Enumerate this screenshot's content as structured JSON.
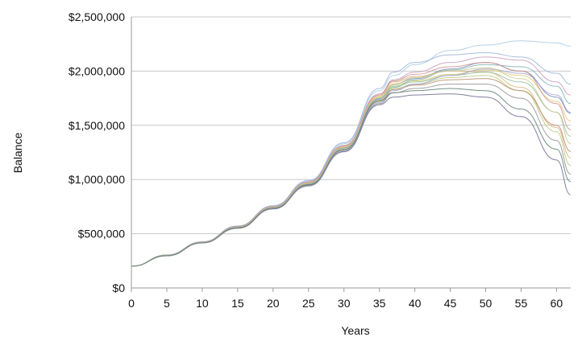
{
  "chart_data": {
    "type": "line",
    "title": "",
    "xlabel": "Years",
    "ylabel": "Balance",
    "xlim": [
      0,
      62
    ],
    "ylim": [
      0,
      2500000
    ],
    "x_ticks": [
      0,
      5,
      10,
      15,
      20,
      25,
      30,
      35,
      40,
      45,
      50,
      55,
      60
    ],
    "y_ticks": [
      0,
      500000,
      1000000,
      1500000,
      2000000,
      2500000
    ],
    "x_tick_labels": [
      "0",
      "5",
      "10",
      "15",
      "20",
      "25",
      "30",
      "35",
      "40",
      "45",
      "50",
      "55",
      "60"
    ],
    "y_tick_labels": [
      "$0",
      "$500,000",
      "$1,000,000",
      "$1,500,000",
      "$2,000,000",
      "$2,500,000"
    ],
    "grid": "horizontal",
    "legend": "none",
    "x": [
      0,
      5,
      10,
      15,
      20,
      25,
      30,
      35,
      37,
      40,
      45,
      50,
      55,
      60,
      62
    ],
    "series": [
      {
        "color": "#7f8fb0",
        "values": [
          200000,
          300000,
          420000,
          560000,
          740000,
          960000,
          1290000,
          1740000,
          1880000,
          1930000,
          2020000,
          2080000,
          2000000,
          1760000,
          1610000
        ]
      },
      {
        "color": "#a8c8e0",
        "values": [
          200000,
          305000,
          425000,
          570000,
          755000,
          985000,
          1330000,
          1820000,
          1960000,
          2060000,
          2190000,
          2240000,
          2280000,
          2260000,
          2230000
        ]
      },
      {
        "color": "#b9c97a",
        "values": [
          200000,
          298000,
          418000,
          555000,
          735000,
          950000,
          1270000,
          1720000,
          1840000,
          1880000,
          1940000,
          1960000,
          1820000,
          1440000,
          1130000
        ]
      },
      {
        "color": "#d9b27a",
        "values": [
          200000,
          302000,
          422000,
          565000,
          748000,
          972000,
          1305000,
          1770000,
          1900000,
          1950000,
          2000000,
          1990000,
          1850000,
          1480000,
          1200000
        ]
      },
      {
        "color": "#8fc09a",
        "values": [
          200000,
          300000,
          420000,
          562000,
          742000,
          965000,
          1295000,
          1750000,
          1860000,
          1900000,
          1960000,
          1990000,
          1900000,
          1620000,
          1400000
        ]
      },
      {
        "color": "#c59ab8",
        "values": [
          200000,
          303000,
          424000,
          567000,
          750000,
          978000,
          1315000,
          1790000,
          1920000,
          1990000,
          2080000,
          2130000,
          2100000,
          1900000,
          1780000
        ]
      },
      {
        "color": "#8f8f8f",
        "values": [
          200000,
          296000,
          415000,
          550000,
          728000,
          940000,
          1255000,
          1700000,
          1800000,
          1840000,
          1880000,
          1880000,
          1750000,
          1360000,
          1050000
        ]
      },
      {
        "color": "#6a6a8f",
        "values": [
          200000,
          297000,
          416000,
          552000,
          730000,
          945000,
          1260000,
          1690000,
          1760000,
          1780000,
          1790000,
          1760000,
          1580000,
          1180000,
          860000
        ]
      },
      {
        "color": "#e0c96a",
        "values": [
          200000,
          301000,
          421000,
          563000,
          745000,
          968000,
          1300000,
          1760000,
          1870000,
          1910000,
          1970000,
          2010000,
          1960000,
          1720000,
          1540000
        ]
      },
      {
        "color": "#9ab0d8",
        "values": [
          200000,
          304000,
          426000,
          572000,
          758000,
          990000,
          1340000,
          1840000,
          1990000,
          2080000,
          2150000,
          2170000,
          2130000,
          1980000,
          1880000
        ]
      },
      {
        "color": "#b88a6a",
        "values": [
          200000,
          299000,
          419000,
          558000,
          738000,
          955000,
          1280000,
          1730000,
          1830000,
          1870000,
          1920000,
          1930000,
          1820000,
          1500000,
          1260000
        ]
      },
      {
        "color": "#7fb0b0",
        "values": [
          200000,
          300000,
          421000,
          560000,
          741000,
          962000,
          1290000,
          1745000,
          1850000,
          1920000,
          2010000,
          2060000,
          2040000,
          1860000,
          1700000
        ]
      },
      {
        "color": "#d08f8f",
        "values": [
          200000,
          302000,
          423000,
          566000,
          749000,
          975000,
          1310000,
          1780000,
          1910000,
          1970000,
          2040000,
          2080000,
          2000000,
          1700000,
          1460000
        ]
      },
      {
        "color": "#a0a0d0",
        "values": [
          200000,
          298000,
          417000,
          554000,
          733000,
          948000,
          1265000,
          1710000,
          1820000,
          1880000,
          1960000,
          2020000,
          1980000,
          1780000,
          1620000
        ]
      },
      {
        "color": "#c8c890",
        "values": [
          200000,
          301000,
          420000,
          561000,
          743000,
          966000,
          1298000,
          1755000,
          1880000,
          1940000,
          2000000,
          2030000,
          1930000,
          1620000,
          1330000
        ]
      },
      {
        "color": "#5f7f6f",
        "values": [
          200000,
          299000,
          418000,
          556000,
          736000,
          952000,
          1275000,
          1725000,
          1800000,
          1820000,
          1840000,
          1820000,
          1650000,
          1280000,
          980000
        ]
      }
    ]
  }
}
